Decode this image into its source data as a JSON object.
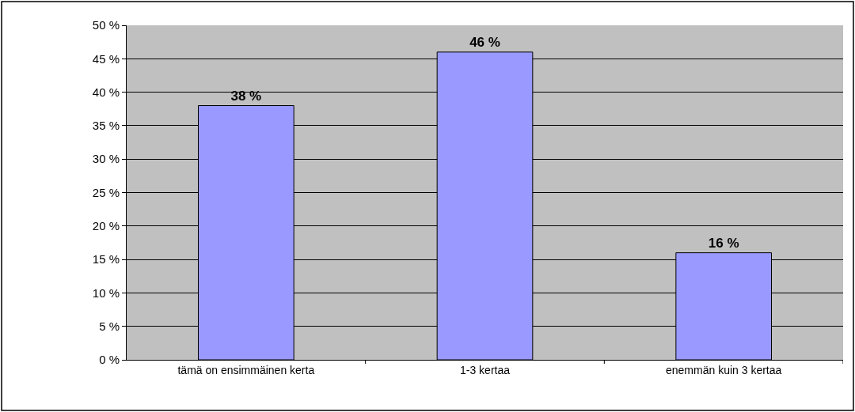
{
  "chart_data": {
    "type": "bar",
    "categories": [
      "tämä on ensimmäinen kerta",
      "1-3 kertaa",
      "enemmän kuin 3 kertaa"
    ],
    "values": [
      38,
      46,
      16
    ],
    "value_labels": [
      "38 %",
      "46 %",
      "16 %"
    ],
    "color": "#9999ff",
    "ylim": [
      0,
      50
    ],
    "yticks": [
      {
        "value": 0,
        "label": "0 %"
      },
      {
        "value": 5,
        "label": "5 %"
      },
      {
        "value": 10,
        "label": "10 %"
      },
      {
        "value": 15,
        "label": "15 %"
      },
      {
        "value": 20,
        "label": "20 %"
      },
      {
        "value": 25,
        "label": "25 %"
      },
      {
        "value": 30,
        "label": "30 %"
      },
      {
        "value": 35,
        "label": "35 %"
      },
      {
        "value": 40,
        "label": "40 %"
      },
      {
        "value": 45,
        "label": "45 %"
      },
      {
        "value": 50,
        "label": "50 %"
      }
    ],
    "grid": "y",
    "legend": false
  }
}
